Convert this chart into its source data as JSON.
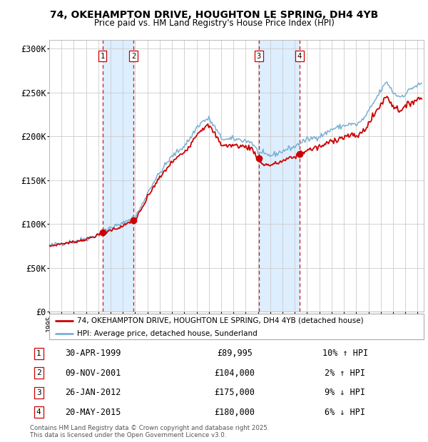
{
  "title_line1": "74, OKEHAMPTON DRIVE, HOUGHTON LE SPRING, DH4 4YB",
  "title_line2": "Price paid vs. HM Land Registry's House Price Index (HPI)",
  "legend_property": "74, OKEHAMPTON DRIVE, HOUGHTON LE SPRING, DH4 4YB (detached house)",
  "legend_hpi": "HPI: Average price, detached house, Sunderland",
  "footer_line1": "Contains HM Land Registry data © Crown copyright and database right 2025.",
  "footer_line2": "This data is licensed under the Open Government Licence v3.0.",
  "transactions": [
    {
      "num": 1,
      "date": "30-APR-1999",
      "date_val": 1999.33,
      "price": 89995,
      "pct": "10%",
      "dir": "↑"
    },
    {
      "num": 2,
      "date": "09-NOV-2001",
      "date_val": 2001.86,
      "price": 104000,
      "pct": "2%",
      "dir": "↑"
    },
    {
      "num": 3,
      "date": "26-JAN-2012",
      "date_val": 2012.07,
      "price": 175000,
      "pct": "9%",
      "dir": "↓"
    },
    {
      "num": 4,
      "date": "20-MAY-2015",
      "date_val": 2015.38,
      "price": 180000,
      "pct": "6%",
      "dir": "↓"
    }
  ],
  "ylim": [
    0,
    310000
  ],
  "yticks": [
    0,
    50000,
    100000,
    150000,
    200000,
    250000,
    300000
  ],
  "ytick_labels": [
    "£0",
    "£50K",
    "£100K",
    "£150K",
    "£200K",
    "£250K",
    "£300K"
  ],
  "xstart": 1995.0,
  "xend": 2025.5,
  "property_color": "#cc0000",
  "hpi_color": "#7ab0d4",
  "shade_color": "#ddeeff",
  "vline_color": "#cc0000",
  "grid_color": "#cccccc",
  "bg_color": "#ffffff",
  "marker_color": "#cc0000"
}
